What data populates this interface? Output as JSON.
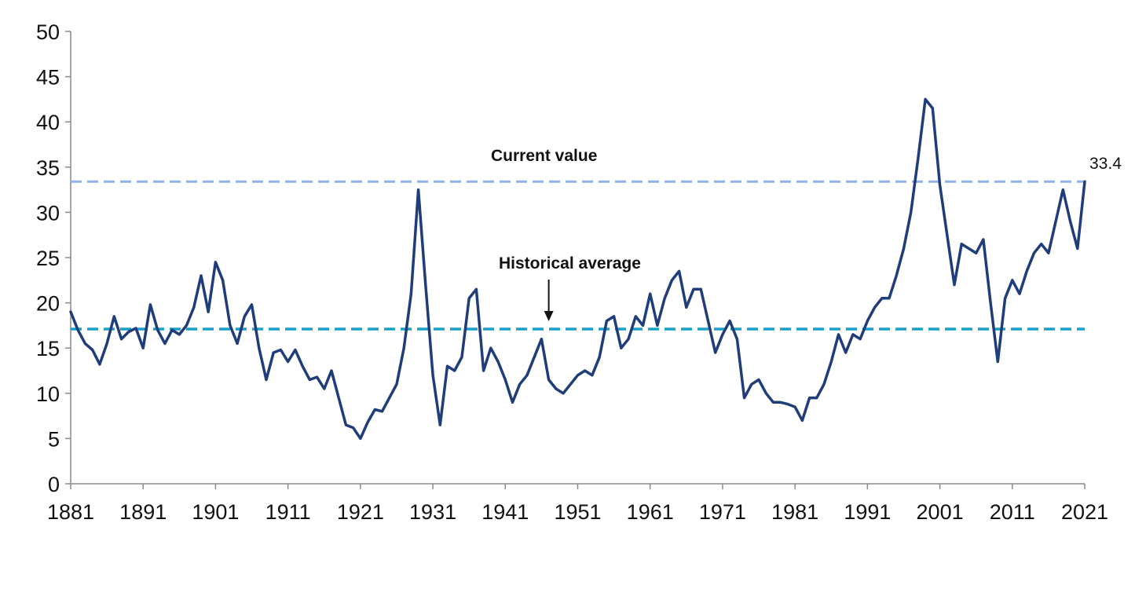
{
  "chart_data": {
    "type": "line",
    "title": "",
    "xlabel": "",
    "ylabel": "",
    "xlim": [
      1881,
      2021
    ],
    "ylim": [
      0,
      50
    ],
    "grid": false,
    "x_ticks": [
      1881,
      1891,
      1901,
      1911,
      1921,
      1931,
      1941,
      1951,
      1961,
      1971,
      1981,
      1991,
      2001,
      2011,
      2021
    ],
    "y_ticks": [
      0,
      5,
      10,
      15,
      20,
      25,
      30,
      35,
      40,
      45,
      50
    ],
    "colors": {
      "series": "#1f3c7b",
      "current_value_line": "#8fb3e8",
      "average_line": "#1aa0c9",
      "axis": "#8a8a8a"
    },
    "reference_lines": [
      {
        "label": "Current value",
        "value": 33.4,
        "value_label": "33.4",
        "style": "dashed"
      },
      {
        "label": "Historical average",
        "value": 17.1,
        "style": "dashed",
        "arrow_year": 1947
      }
    ],
    "series": [
      {
        "points": [
          [
            1881,
            19.0
          ],
          [
            1882,
            17.0
          ],
          [
            1883,
            15.5
          ],
          [
            1884,
            14.8
          ],
          [
            1885,
            13.2
          ],
          [
            1886,
            15.5
          ],
          [
            1887,
            18.5
          ],
          [
            1888,
            16.0
          ],
          [
            1889,
            16.8
          ],
          [
            1890,
            17.2
          ],
          [
            1891,
            15.0
          ],
          [
            1892,
            19.8
          ],
          [
            1893,
            17.0
          ],
          [
            1894,
            15.5
          ],
          [
            1895,
            17.0
          ],
          [
            1896,
            16.5
          ],
          [
            1897,
            17.5
          ],
          [
            1898,
            19.5
          ],
          [
            1899,
            23.0
          ],
          [
            1900,
            19.0
          ],
          [
            1901,
            24.5
          ],
          [
            1902,
            22.5
          ],
          [
            1903,
            17.5
          ],
          [
            1904,
            15.5
          ],
          [
            1905,
            18.5
          ],
          [
            1906,
            19.8
          ],
          [
            1907,
            15.0
          ],
          [
            1908,
            11.5
          ],
          [
            1909,
            14.5
          ],
          [
            1910,
            14.8
          ],
          [
            1911,
            13.5
          ],
          [
            1912,
            14.8
          ],
          [
            1913,
            13.0
          ],
          [
            1914,
            11.5
          ],
          [
            1915,
            11.8
          ],
          [
            1916,
            10.5
          ],
          [
            1917,
            12.5
          ],
          [
            1918,
            9.5
          ],
          [
            1919,
            6.5
          ],
          [
            1920,
            6.2
          ],
          [
            1921,
            5.0
          ],
          [
            1922,
            6.8
          ],
          [
            1923,
            8.2
          ],
          [
            1924,
            8.0
          ],
          [
            1925,
            9.5
          ],
          [
            1926,
            11.0
          ],
          [
            1927,
            15.0
          ],
          [
            1928,
            21.0
          ],
          [
            1929,
            32.5
          ],
          [
            1930,
            22.0
          ],
          [
            1931,
            12.0
          ],
          [
            1932,
            6.5
          ],
          [
            1933,
            13.0
          ],
          [
            1934,
            12.5
          ],
          [
            1935,
            14.0
          ],
          [
            1936,
            20.5
          ],
          [
            1937,
            21.5
          ],
          [
            1938,
            12.5
          ],
          [
            1939,
            15.0
          ],
          [
            1940,
            13.5
          ],
          [
            1941,
            11.5
          ],
          [
            1942,
            9.0
          ],
          [
            1943,
            11.0
          ],
          [
            1944,
            12.0
          ],
          [
            1945,
            14.0
          ],
          [
            1946,
            16.0
          ],
          [
            1947,
            11.5
          ],
          [
            1948,
            10.5
          ],
          [
            1949,
            10.0
          ],
          [
            1950,
            11.0
          ],
          [
            1951,
            12.0
          ],
          [
            1952,
            12.5
          ],
          [
            1953,
            12.0
          ],
          [
            1954,
            14.0
          ],
          [
            1955,
            18.0
          ],
          [
            1956,
            18.5
          ],
          [
            1957,
            15.0
          ],
          [
            1958,
            16.0
          ],
          [
            1959,
            18.5
          ],
          [
            1960,
            17.5
          ],
          [
            1961,
            21.0
          ],
          [
            1962,
            17.5
          ],
          [
            1963,
            20.5
          ],
          [
            1964,
            22.5
          ],
          [
            1965,
            23.5
          ],
          [
            1966,
            19.5
          ],
          [
            1967,
            21.5
          ],
          [
            1968,
            21.5
          ],
          [
            1969,
            18.0
          ],
          [
            1970,
            14.5
          ],
          [
            1971,
            16.5
          ],
          [
            1972,
            18.0
          ],
          [
            1973,
            16.0
          ],
          [
            1974,
            9.5
          ],
          [
            1975,
            11.0
          ],
          [
            1976,
            11.5
          ],
          [
            1977,
            10.0
          ],
          [
            1978,
            9.0
          ],
          [
            1979,
            9.0
          ],
          [
            1980,
            8.8
          ],
          [
            1981,
            8.5
          ],
          [
            1982,
            7.0
          ],
          [
            1983,
            9.5
          ],
          [
            1984,
            9.5
          ],
          [
            1985,
            11.0
          ],
          [
            1986,
            13.5
          ],
          [
            1987,
            16.5
          ],
          [
            1988,
            14.5
          ],
          [
            1989,
            16.5
          ],
          [
            1990,
            16.0
          ],
          [
            1991,
            18.0
          ],
          [
            1992,
            19.5
          ],
          [
            1993,
            20.5
          ],
          [
            1994,
            20.5
          ],
          [
            1995,
            23.0
          ],
          [
            1996,
            26.0
          ],
          [
            1997,
            30.0
          ],
          [
            1998,
            36.0
          ],
          [
            1999,
            42.5
          ],
          [
            2000,
            41.5
          ],
          [
            2001,
            33.0
          ],
          [
            2002,
            27.5
          ],
          [
            2003,
            22.0
          ],
          [
            2004,
            26.5
          ],
          [
            2005,
            26.0
          ],
          [
            2006,
            25.5
          ],
          [
            2007,
            27.0
          ],
          [
            2008,
            20.0
          ],
          [
            2009,
            13.5
          ],
          [
            2010,
            20.5
          ],
          [
            2011,
            22.5
          ],
          [
            2012,
            21.0
          ],
          [
            2013,
            23.5
          ],
          [
            2014,
            25.5
          ],
          [
            2015,
            26.5
          ],
          [
            2016,
            25.5
          ],
          [
            2017,
            29.0
          ],
          [
            2018,
            32.5
          ],
          [
            2019,
            29.0
          ],
          [
            2020,
            26.0
          ],
          [
            2021,
            33.4
          ]
        ]
      }
    ]
  }
}
